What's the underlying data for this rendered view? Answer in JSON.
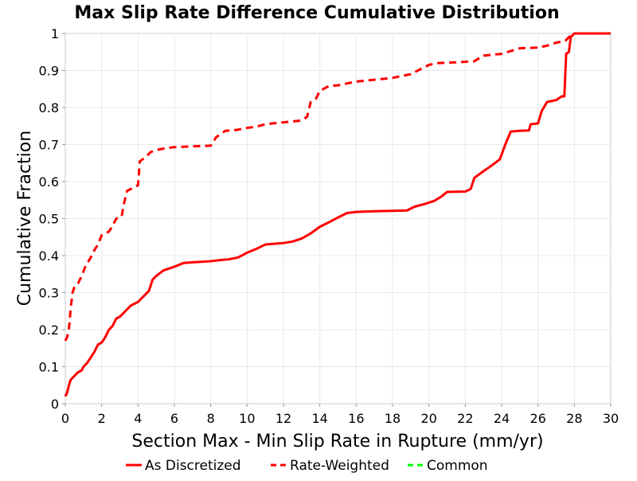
{
  "chart_data": {
    "type": "line",
    "title": "Max Slip Rate Difference Cumulative Distribution",
    "xlabel": "Section Max - Min Slip Rate in Rupture (mm/yr)",
    "ylabel": "Cumulative Fraction",
    "xlim": [
      0,
      30
    ],
    "ylim": [
      0,
      1
    ],
    "x_ticks": [
      0,
      2,
      4,
      6,
      8,
      10,
      12,
      14,
      16,
      18,
      20,
      22,
      24,
      26,
      28,
      30
    ],
    "y_ticks": [
      0,
      0.1,
      0.2,
      0.3,
      0.4,
      0.5,
      0.6,
      0.7,
      0.8,
      0.9,
      1
    ],
    "grid": true,
    "legend_position": "bottom",
    "series": [
      {
        "name": "As Discretized",
        "color": "#ff0000",
        "style": "solid",
        "points": [
          [
            0,
            0.02
          ],
          [
            0.1,
            0.03
          ],
          [
            0.2,
            0.05
          ],
          [
            0.3,
            0.065
          ],
          [
            0.5,
            0.075
          ],
          [
            0.7,
            0.085
          ],
          [
            0.9,
            0.09
          ],
          [
            1.0,
            0.1
          ],
          [
            1.2,
            0.11
          ],
          [
            1.4,
            0.125
          ],
          [
            1.6,
            0.14
          ],
          [
            1.8,
            0.16
          ],
          [
            2.0,
            0.165
          ],
          [
            2.2,
            0.18
          ],
          [
            2.4,
            0.2
          ],
          [
            2.6,
            0.21
          ],
          [
            2.8,
            0.23
          ],
          [
            3.0,
            0.235
          ],
          [
            3.3,
            0.25
          ],
          [
            3.6,
            0.265
          ],
          [
            4.0,
            0.275
          ],
          [
            4.3,
            0.29
          ],
          [
            4.6,
            0.305
          ],
          [
            4.8,
            0.335
          ],
          [
            5.0,
            0.345
          ],
          [
            5.4,
            0.36
          ],
          [
            6.0,
            0.37
          ],
          [
            6.5,
            0.38
          ],
          [
            7.0,
            0.382
          ],
          [
            8.0,
            0.385
          ],
          [
            8.5,
            0.388
          ],
          [
            9.0,
            0.39
          ],
          [
            9.5,
            0.395
          ],
          [
            10.0,
            0.408
          ],
          [
            10.5,
            0.418
          ],
          [
            11.0,
            0.43
          ],
          [
            11.5,
            0.432
          ],
          [
            12.0,
            0.434
          ],
          [
            12.5,
            0.438
          ],
          [
            13.0,
            0.446
          ],
          [
            13.5,
            0.46
          ],
          [
            14.0,
            0.478
          ],
          [
            14.5,
            0.49
          ],
          [
            15.0,
            0.503
          ],
          [
            15.5,
            0.515
          ],
          [
            16.0,
            0.518
          ],
          [
            17.0,
            0.52
          ],
          [
            18.0,
            0.521
          ],
          [
            18.8,
            0.522
          ],
          [
            19.2,
            0.532
          ],
          [
            19.8,
            0.54
          ],
          [
            20.3,
            0.548
          ],
          [
            20.7,
            0.56
          ],
          [
            21.0,
            0.572
          ],
          [
            22.0,
            0.573
          ],
          [
            22.3,
            0.58
          ],
          [
            22.5,
            0.61
          ],
          [
            23.0,
            0.628
          ],
          [
            23.5,
            0.645
          ],
          [
            23.9,
            0.66
          ],
          [
            24.2,
            0.7
          ],
          [
            24.5,
            0.735
          ],
          [
            25.0,
            0.737
          ],
          [
            25.5,
            0.738
          ],
          [
            25.6,
            0.755
          ],
          [
            26.0,
            0.757
          ],
          [
            26.2,
            0.79
          ],
          [
            26.5,
            0.815
          ],
          [
            27.0,
            0.82
          ],
          [
            27.3,
            0.83
          ],
          [
            27.45,
            0.83
          ],
          [
            27.55,
            0.945
          ],
          [
            27.7,
            0.95
          ],
          [
            27.8,
            0.99
          ],
          [
            28.0,
            1.0
          ],
          [
            30.0,
            1.0
          ]
        ]
      },
      {
        "name": "Rate-Weighted",
        "color": "#ff0000",
        "style": "dashed",
        "points": [
          [
            0,
            0.17
          ],
          [
            0.1,
            0.18
          ],
          [
            0.2,
            0.2
          ],
          [
            0.3,
            0.26
          ],
          [
            0.4,
            0.3
          ],
          [
            0.5,
            0.315
          ],
          [
            0.7,
            0.325
          ],
          [
            0.9,
            0.345
          ],
          [
            1.1,
            0.37
          ],
          [
            1.4,
            0.395
          ],
          [
            1.6,
            0.415
          ],
          [
            1.8,
            0.43
          ],
          [
            2.0,
            0.455
          ],
          [
            2.4,
            0.465
          ],
          [
            2.6,
            0.48
          ],
          [
            2.8,
            0.5
          ],
          [
            3.1,
            0.505
          ],
          [
            3.2,
            0.535
          ],
          [
            3.4,
            0.575
          ],
          [
            3.7,
            0.582
          ],
          [
            4.0,
            0.59
          ],
          [
            4.1,
            0.655
          ],
          [
            4.4,
            0.665
          ],
          [
            4.7,
            0.68
          ],
          [
            5.0,
            0.685
          ],
          [
            5.5,
            0.69
          ],
          [
            6.0,
            0.693
          ],
          [
            7.0,
            0.695
          ],
          [
            8.0,
            0.697
          ],
          [
            8.3,
            0.72
          ],
          [
            8.8,
            0.737
          ],
          [
            9.5,
            0.74
          ],
          [
            10.0,
            0.745
          ],
          [
            10.5,
            0.748
          ],
          [
            11.0,
            0.755
          ],
          [
            12.0,
            0.76
          ],
          [
            13.0,
            0.765
          ],
          [
            13.3,
            0.775
          ],
          [
            13.5,
            0.815
          ],
          [
            13.8,
            0.825
          ],
          [
            14.0,
            0.845
          ],
          [
            14.5,
            0.858
          ],
          [
            15.0,
            0.86
          ],
          [
            15.5,
            0.865
          ],
          [
            16.0,
            0.87
          ],
          [
            17.0,
            0.875
          ],
          [
            18.0,
            0.88
          ],
          [
            19.0,
            0.89
          ],
          [
            20.0,
            0.915
          ],
          [
            20.5,
            0.92
          ],
          [
            21.5,
            0.922
          ],
          [
            22.5,
            0.925
          ],
          [
            23.0,
            0.94
          ],
          [
            24.0,
            0.945
          ],
          [
            25.0,
            0.96
          ],
          [
            26.0,
            0.962
          ],
          [
            26.5,
            0.967
          ],
          [
            27.0,
            0.975
          ],
          [
            27.5,
            0.98
          ],
          [
            27.8,
            0.995
          ],
          [
            28.0,
            1.0
          ],
          [
            30.0,
            1.0
          ]
        ]
      },
      {
        "name": "Common",
        "color": "#00ff00",
        "style": "dashed",
        "points": []
      }
    ]
  }
}
